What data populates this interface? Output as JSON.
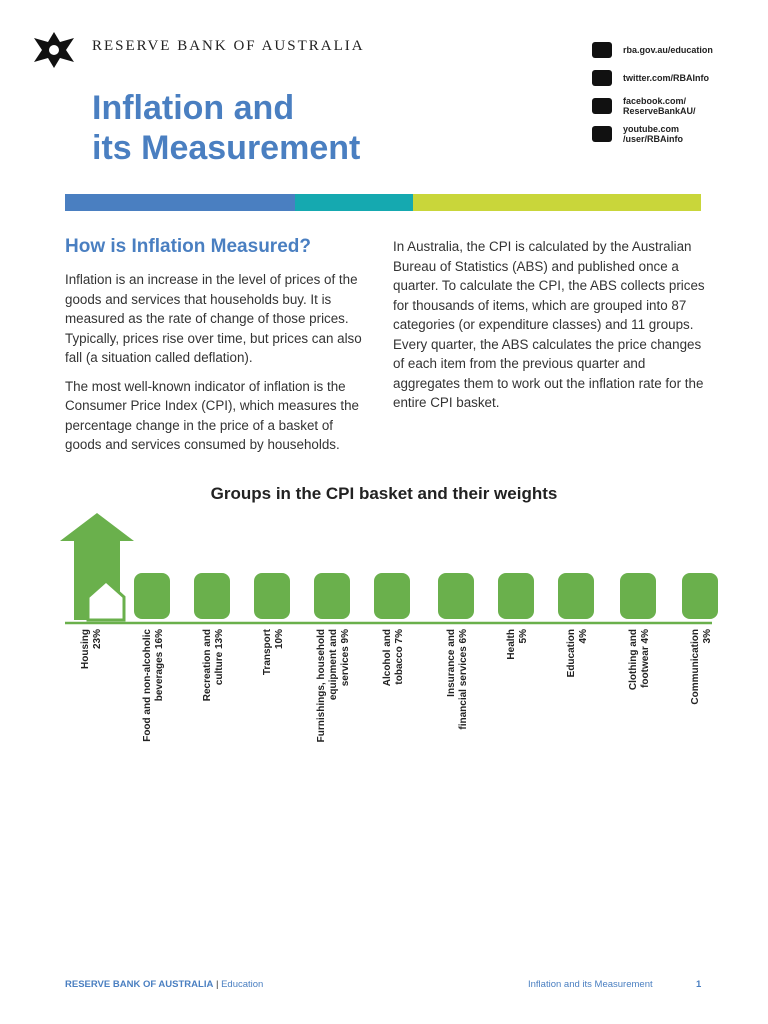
{
  "header": {
    "org": "RESERVE BANK OF AUSTRALIA",
    "title_lines": [
      "Inflation and",
      "its Measurement"
    ],
    "links": [
      [
        "rba.gov.au/education"
      ],
      [
        "twitter.com/RBAInfo"
      ],
      [
        "facebook.com/",
        "ReserveBankAU/"
      ],
      [
        "youtube.com",
        "/user/RBAinfo"
      ]
    ]
  },
  "section": {
    "heading": "How is Inflation Measured?",
    "left_paragraphs": [
      "Inflation is an increase in the level of prices of the goods and services that households buy. It is measured as the rate of change of those prices. Typically, prices rise over time, but prices can also fall (a situation called deflation).",
      "The most well-known indicator of inflation is the Consumer Price Index (CPI), which measures the percentage change in the price of a basket of goods and services consumed by households."
    ],
    "right_paragraphs": [
      "In Australia, the CPI is calculated by the Australian Bureau of Statistics (ABS) and published once a quarter. To calculate the CPI, the ABS collects prices for thousands of items, which are grouped into 87 categories (or expenditure classes) and 11 groups. Every quarter, the ABS calculates the price changes of each item from the previous quarter and aggregates them to work out the inflation rate for the entire CPI basket."
    ]
  },
  "figure": {
    "title": "Groups in the CPI basket and their weights",
    "groups": [
      [
        "Housing",
        "23%"
      ],
      [
        "Food and non-alcoholic",
        "beverages 16%"
      ],
      [
        "Recreation and",
        "culture 13%"
      ],
      [
        "Transport",
        "10%"
      ],
      [
        "Furnishings, household",
        "equipment and",
        "services 9%"
      ],
      [
        "Alcohol and",
        "tobacco 7%"
      ],
      [
        "Insurance and",
        "financial services 6%"
      ],
      [
        "Health",
        "5%"
      ],
      [
        "Education",
        "4%"
      ],
      [
        "Clothing and",
        "footwear 4%"
      ],
      [
        "Communication",
        "3%"
      ]
    ]
  },
  "footer": {
    "org": "RESERVE BANK OF AUSTRALIA",
    "section": "Education",
    "doc": "Inflation and its Measurement",
    "page": "1"
  }
}
